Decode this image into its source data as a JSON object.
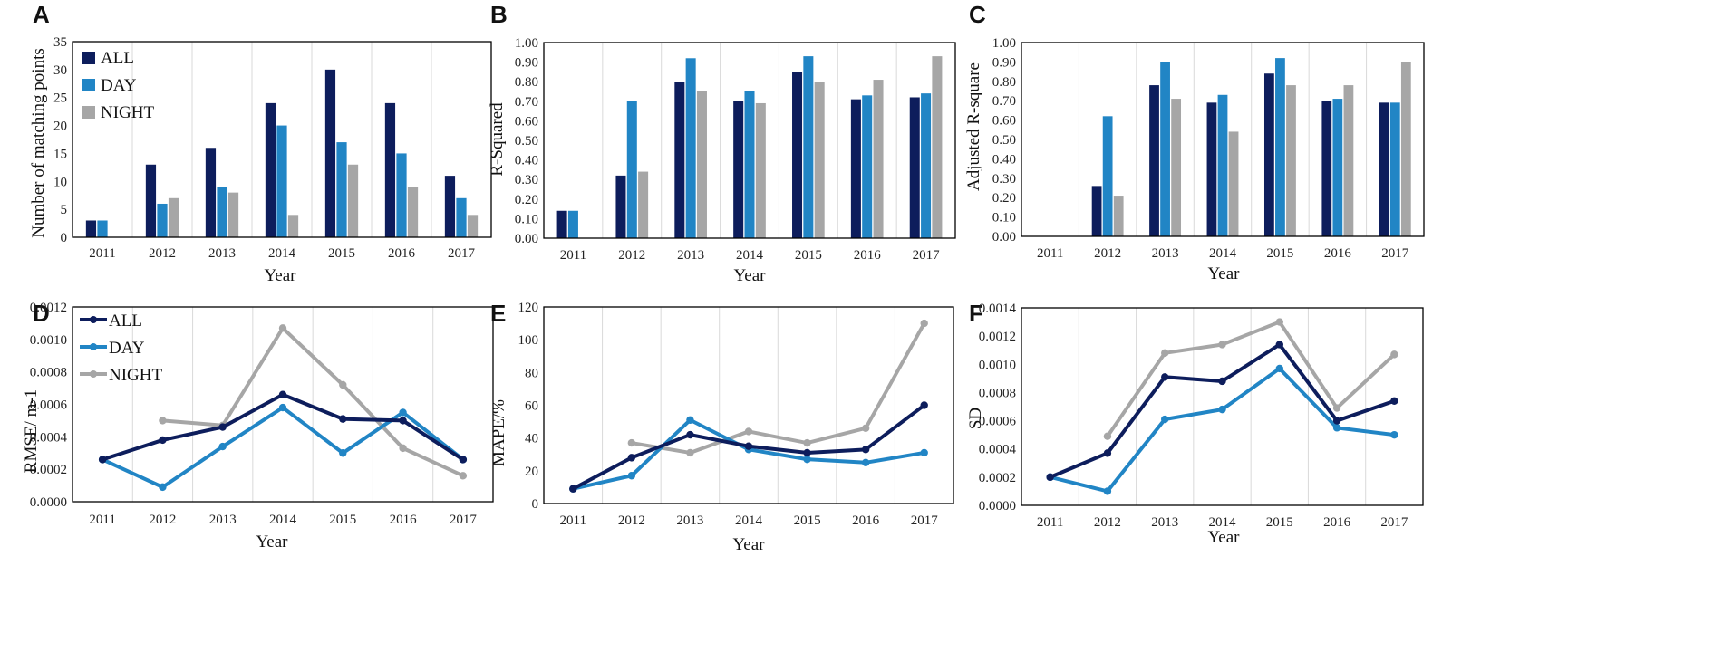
{
  "colors": {
    "ALL": "#0d1d5c",
    "DAY": "#2185c5",
    "NIGHT": "#a6a6a6"
  },
  "chart_data": [
    {
      "panel": "A",
      "type": "bar",
      "title": "",
      "xlabel": "Year",
      "ylabel": "Number of matching points",
      "categories": [
        "2011",
        "2012",
        "2013",
        "2014",
        "2015",
        "2016",
        "2017"
      ],
      "ylim": [
        0,
        35
      ],
      "yticks": [
        "0",
        "5",
        "10",
        "15",
        "20",
        "25",
        "30",
        "35"
      ],
      "legend": [
        "ALL",
        "DAY",
        "NIGHT"
      ],
      "legend_position": "top-left",
      "series": [
        {
          "name": "ALL",
          "values": [
            3,
            13,
            16,
            24,
            30,
            24,
            11
          ]
        },
        {
          "name": "DAY",
          "values": [
            3,
            6,
            9,
            20,
            17,
            15,
            7
          ]
        },
        {
          "name": "NIGHT",
          "values": [
            null,
            7,
            8,
            4,
            13,
            9,
            4
          ]
        }
      ]
    },
    {
      "panel": "B",
      "type": "bar",
      "title": "",
      "xlabel": "Year",
      "ylabel": "R-Squared",
      "categories": [
        "2011",
        "2012",
        "2013",
        "2014",
        "2015",
        "2016",
        "2017"
      ],
      "ylim": [
        0,
        1
      ],
      "yticks": [
        "0.00",
        "0.10",
        "0.20",
        "0.30",
        "0.40",
        "0.50",
        "0.60",
        "0.70",
        "0.80",
        "0.90",
        "1.00"
      ],
      "series": [
        {
          "name": "ALL",
          "values": [
            0.14,
            0.32,
            0.8,
            0.7,
            0.85,
            0.71,
            0.72
          ]
        },
        {
          "name": "DAY",
          "values": [
            0.14,
            0.7,
            0.92,
            0.75,
            0.93,
            0.73,
            0.74
          ]
        },
        {
          "name": "NIGHT",
          "values": [
            null,
            0.34,
            0.75,
            0.69,
            0.8,
            0.81,
            0.93
          ]
        }
      ]
    },
    {
      "panel": "C",
      "type": "bar",
      "title": "",
      "xlabel": "Year",
      "ylabel": "Adjusted R-square",
      "categories": [
        "2011",
        "2012",
        "2013",
        "2014",
        "2015",
        "2016",
        "2017"
      ],
      "ylim": [
        0,
        1
      ],
      "yticks": [
        "0.00",
        "0.10",
        "0.20",
        "0.30",
        "0.40",
        "0.50",
        "0.60",
        "0.70",
        "0.80",
        "0.90",
        "1.00"
      ],
      "series": [
        {
          "name": "ALL",
          "values": [
            null,
            0.26,
            0.78,
            0.69,
            0.84,
            0.7,
            0.69
          ]
        },
        {
          "name": "DAY",
          "values": [
            null,
            0.62,
            0.9,
            0.73,
            0.92,
            0.71,
            0.69
          ]
        },
        {
          "name": "NIGHT",
          "values": [
            null,
            0.21,
            0.71,
            0.54,
            0.78,
            0.78,
            0.9
          ]
        }
      ]
    },
    {
      "panel": "D",
      "type": "line",
      "title": "",
      "xlabel": "Year",
      "ylabel": "RMSE/ m-1",
      "categories": [
        "2011",
        "2012",
        "2013",
        "2014",
        "2015",
        "2016",
        "2017"
      ],
      "ylim": [
        0,
        0.0012
      ],
      "yticks": [
        "0.0000",
        "0.0002",
        "0.0004",
        "0.0006",
        "0.0008",
        "0.0010",
        "0.0012"
      ],
      "legend": [
        "ALL",
        "DAY",
        "NIGHT"
      ],
      "legend_position": "top-left",
      "series": [
        {
          "name": "ALL",
          "values": [
            0.00026,
            0.00038,
            0.00046,
            0.00066,
            0.00051,
            0.0005,
            0.00026
          ]
        },
        {
          "name": "DAY",
          "values": [
            0.00026,
            9e-05,
            0.00034,
            0.00058,
            0.0003,
            0.00055,
            0.00026
          ]
        },
        {
          "name": "NIGHT",
          "values": [
            null,
            0.0005,
            0.00047,
            0.00107,
            0.00072,
            0.00033,
            0.00016
          ]
        }
      ]
    },
    {
      "panel": "E",
      "type": "line",
      "title": "",
      "xlabel": "Year",
      "ylabel": "MAPE/%",
      "categories": [
        "2011",
        "2012",
        "2013",
        "2014",
        "2015",
        "2016",
        "2017"
      ],
      "ylim": [
        0,
        120
      ],
      "yticks": [
        "0",
        "20",
        "40",
        "60",
        "80",
        "100",
        "120"
      ],
      "series": [
        {
          "name": "ALL",
          "values": [
            9,
            28,
            42,
            35,
            31,
            33,
            60
          ]
        },
        {
          "name": "DAY",
          "values": [
            9,
            17,
            51,
            33,
            27,
            25,
            31
          ]
        },
        {
          "name": "NIGHT",
          "values": [
            null,
            37,
            31,
            44,
            37,
            46,
            110
          ]
        }
      ]
    },
    {
      "panel": "F",
      "type": "line",
      "title": "",
      "xlabel": "Year",
      "ylabel": "SD",
      "categories": [
        "2011",
        "2012",
        "2013",
        "2014",
        "2015",
        "2016",
        "2017"
      ],
      "ylim": [
        0,
        0.0014
      ],
      "yticks": [
        "0.0000",
        "0.0002",
        "0.0004",
        "0.0006",
        "0.0008",
        "0.0010",
        "0.0012",
        "0.0014"
      ],
      "series": [
        {
          "name": "ALL",
          "values": [
            0.0002,
            0.00037,
            0.00091,
            0.00088,
            0.00114,
            0.0006,
            0.00074
          ]
        },
        {
          "name": "DAY",
          "values": [
            0.0002,
            0.0001,
            0.00061,
            0.00068,
            0.00097,
            0.00055,
            0.0005
          ]
        },
        {
          "name": "NIGHT",
          "values": [
            null,
            0.00049,
            0.00108,
            0.00114,
            0.0013,
            0.00069,
            0.00107
          ]
        }
      ]
    }
  ]
}
